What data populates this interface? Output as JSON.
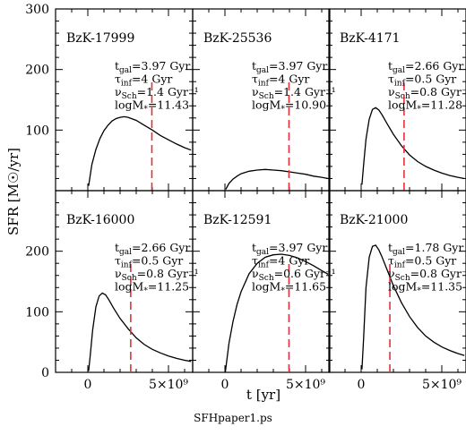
{
  "caption": "SFHpaper1.ps",
  "chart_data": {
    "type": "line",
    "xlabel": "t [yr]",
    "ylabel": "SFR [M☉/yr]",
    "xlim": [
      -2000000000.0,
      6500000000.0
    ],
    "ylim": [
      0,
      300
    ],
    "xticks": [
      {
        "value": 0,
        "label": "0"
      },
      {
        "value": 5000000000.0,
        "label": "5×10⁹"
      }
    ],
    "yticks_top_row": [
      {
        "value": 100,
        "label": "100"
      },
      {
        "value": 200,
        "label": "200"
      },
      {
        "value": 300,
        "label": "300"
      }
    ],
    "yticks_bottom_row": [
      {
        "value": 0,
        "label": "0"
      },
      {
        "value": 100,
        "label": "100"
      },
      {
        "value": 200,
        "label": "200"
      }
    ],
    "layout": "3 columns x 2 rows, shared axes",
    "panels": [
      {
        "id": "BzK-17999",
        "label": "BzK-17999",
        "t_gal": "3.97 Gyr",
        "tau_inf": "4 Gyr",
        "nu_sch": "1.4 Gyr⁻¹",
        "logM": "11.43",
        "t_gal_value": 3970000000.0,
        "curve": {
          "x": [
            50000000.0,
            250000000.0,
            500000000.0,
            750000000.0,
            1000000000.0,
            1250000000.0,
            1500000000.0,
            1750000000.0,
            2000000000.0,
            2250000000.0,
            2500000000.0,
            3000000000.0,
            3500000000.0,
            4000000000.0,
            4500000000.0,
            5000000000.0,
            5500000000.0,
            6000000000.0,
            6400000000.0
          ],
          "y": [
            8,
            43,
            68,
            86,
            99,
            108,
            115,
            119,
            121,
            122,
            121,
            116,
            108,
            100,
            91,
            84,
            77,
            71,
            67
          ]
        }
      },
      {
        "id": "BzK-25536",
        "label": "BzK-25536",
        "t_gal": "3.97 Gyr",
        "tau_inf": "4 Gyr",
        "nu_sch": "1.4 Gyr⁻¹",
        "logM": "10.90",
        "t_gal_value": 3970000000.0,
        "curve": {
          "x": [
            50000000.0,
            250000000.0,
            500000000.0,
            750000000.0,
            1000000000.0,
            1500000000.0,
            2000000000.0,
            2500000000.0,
            3000000000.0,
            3500000000.0,
            4000000000.0,
            4500000000.0,
            5000000000.0,
            5500000000.0,
            6000000000.0,
            6400000000.0
          ],
          "y": [
            2,
            12,
            19,
            24,
            28,
            32,
            34,
            35,
            34,
            33,
            31,
            29,
            27,
            24,
            22,
            20
          ]
        }
      },
      {
        "id": "BzK-4171",
        "label": "BzK-4171",
        "t_gal": "2.66 Gyr",
        "tau_inf": "0.5 Gyr",
        "nu_sch": "0.8 Gyr⁻¹",
        "logM": "11.28",
        "t_gal_value": 2660000000.0,
        "curve": {
          "x": [
            50000000.0,
            150000000.0,
            300000000.0,
            500000000.0,
            700000000.0,
            900000000.0,
            1100000000.0,
            1300000000.0,
            1600000000.0,
            2000000000.0,
            2500000000.0,
            3000000000.0,
            3500000000.0,
            4000000000.0,
            4500000000.0,
            5000000000.0,
            5500000000.0,
            6000000000.0,
            6400000000.0
          ],
          "y": [
            10,
            42,
            85,
            118,
            134,
            137,
            133,
            125,
            111,
            93,
            74,
            59,
            48,
            40,
            34,
            29,
            25,
            22,
            20
          ]
        }
      },
      {
        "id": "BzK-16000",
        "label": "BzK-16000",
        "t_gal": "2.66 Gyr",
        "tau_inf": "0.5 Gyr",
        "nu_sch": "0.8 Gyr⁻¹",
        "logM": "11.25",
        "t_gal_value": 2660000000.0,
        "curve": {
          "x": [
            50000000.0,
            150000000.0,
            300000000.0,
            500000000.0,
            700000000.0,
            900000000.0,
            1100000000.0,
            1300000000.0,
            1600000000.0,
            2000000000.0,
            2500000000.0,
            3000000000.0,
            3500000000.0,
            4000000000.0,
            4500000000.0,
            5000000000.0,
            5500000000.0,
            6000000000.0,
            6400000000.0
          ],
          "y": [
            2,
            28,
            70,
            108,
            126,
            131,
            128,
            120,
            106,
            89,
            72,
            57,
            46,
            38,
            32,
            27,
            23,
            20,
            18
          ]
        }
      },
      {
        "id": "BzK-12591",
        "label": "BzK-12591",
        "t_gal": "3.97 Gyr",
        "tau_inf": "4 Gyr",
        "nu_sch": "0.6 Gyr⁻¹",
        "logM": "11.65",
        "t_gal_value": 3970000000.0,
        "curve": {
          "x": [
            20000000.0,
            250000000.0,
            500000000.0,
            750000000.0,
            1000000000.0,
            1500000000.0,
            2000000000.0,
            2500000000.0,
            3000000000.0,
            3500000000.0,
            4000000000.0,
            4500000000.0,
            5000000000.0,
            5500000000.0,
            6000000000.0,
            6400000000.0
          ],
          "y": [
            0,
            48,
            84,
            112,
            133,
            163,
            180,
            190,
            194,
            195,
            193,
            189,
            183,
            176,
            168,
            162
          ]
        }
      },
      {
        "id": "BzK-21000",
        "label": "BzK-21000",
        "t_gal": "1.78 Gyr",
        "tau_inf": "0.5 Gyr",
        "nu_sch": "0.8 Gyr⁻¹",
        "logM": "11.35",
        "t_gal_value": 1780000000.0,
        "curve": {
          "x": [
            50000000.0,
            150000000.0,
            300000000.0,
            500000000.0,
            700000000.0,
            900000000.0,
            1100000000.0,
            1300000000.0,
            1600000000.0,
            2000000000.0,
            2500000000.0,
            3000000000.0,
            3500000000.0,
            4000000000.0,
            4500000000.0,
            5000000000.0,
            5500000000.0,
            6000000000.0,
            6400000000.0
          ],
          "y": [
            5,
            55,
            140,
            190,
            208,
            210,
            202,
            190,
            170,
            143,
            115,
            92,
            74,
            60,
            50,
            42,
            36,
            31,
            28
          ]
        }
      }
    ]
  }
}
